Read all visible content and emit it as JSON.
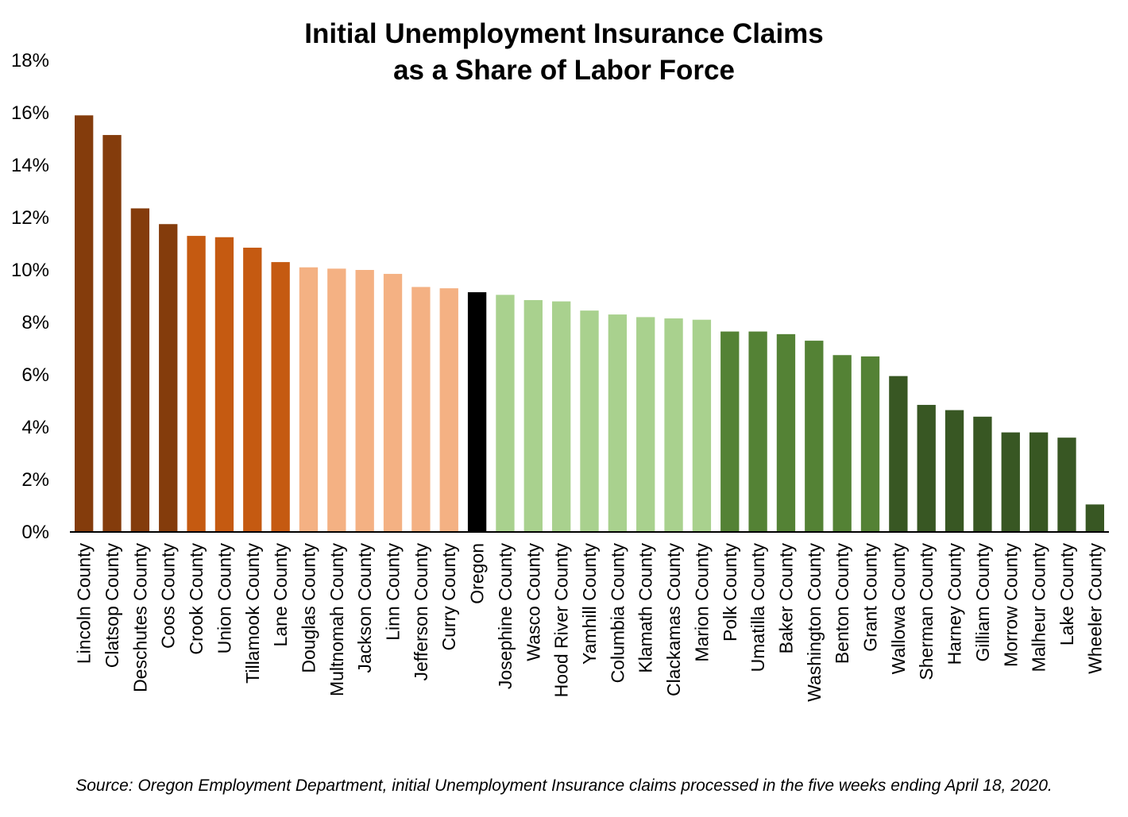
{
  "chart_data": {
    "type": "bar",
    "title_lines": [
      "Initial Unemployment Insurance Claims",
      "as a Share of Labor Force"
    ],
    "xlabel": "",
    "ylabel": "",
    "ylim": [
      0,
      18
    ],
    "yticks": [
      0,
      2,
      4,
      6,
      8,
      10,
      12,
      14,
      16,
      18
    ],
    "ytick_labels": [
      "0%",
      "2%",
      "4%",
      "6%",
      "8%",
      "10%",
      "12%",
      "14%",
      "16%",
      "18%"
    ],
    "grid": false,
    "legend": "none",
    "categories": [
      "Lincoln County",
      "Clatsop County",
      "Deschutes County",
      "Coos County",
      "Crook County",
      "Union County",
      "Tillamook County",
      "Lane County",
      "Douglas County",
      "Multnomah County",
      "Jackson County",
      "Linn County",
      "Jefferson County",
      "Curry County",
      "Oregon",
      "Josephine County",
      "Wasco County",
      "Hood River County",
      "Yamhill County",
      "Columbia County",
      "Klamath County",
      "Clackamas County",
      "Marion County",
      "Polk County",
      "Umatilla County",
      "Baker County",
      "Washington County",
      "Benton County",
      "Grant County",
      "Wallowa County",
      "Sherman County",
      "Harney County",
      "Gilliam County",
      "Morrow County",
      "Malheur County",
      "Lake County",
      "Wheeler County"
    ],
    "values": [
      15.9,
      15.15,
      12.35,
      11.75,
      11.3,
      11.25,
      10.85,
      10.3,
      10.1,
      10.05,
      10.0,
      9.85,
      9.35,
      9.3,
      9.15,
      9.05,
      8.85,
      8.8,
      8.45,
      8.3,
      8.2,
      8.15,
      8.1,
      7.65,
      7.65,
      7.55,
      7.3,
      6.75,
      6.7,
      5.95,
      4.85,
      4.65,
      4.4,
      3.8,
      3.8,
      3.6,
      1.05
    ],
    "colors": [
      "#843C0C",
      "#843C0C",
      "#843C0C",
      "#843C0C",
      "#C55A11",
      "#C55A11",
      "#C55A11",
      "#C55A11",
      "#F4B183",
      "#F4B183",
      "#F4B183",
      "#F4B183",
      "#F4B183",
      "#F4B183",
      "#000000",
      "#A9D18E",
      "#A9D18E",
      "#A9D18E",
      "#A9D18E",
      "#A9D18E",
      "#A9D18E",
      "#A9D18E",
      "#A9D18E",
      "#548235",
      "#548235",
      "#548235",
      "#548235",
      "#548235",
      "#548235",
      "#385723",
      "#385723",
      "#385723",
      "#385723",
      "#385723",
      "#385723",
      "#385723",
      "#385723"
    ]
  },
  "source_note": "Source: Oregon Employment Department, initial Unemployment Insurance claims processed in the five weeks ending April 18, 2020."
}
